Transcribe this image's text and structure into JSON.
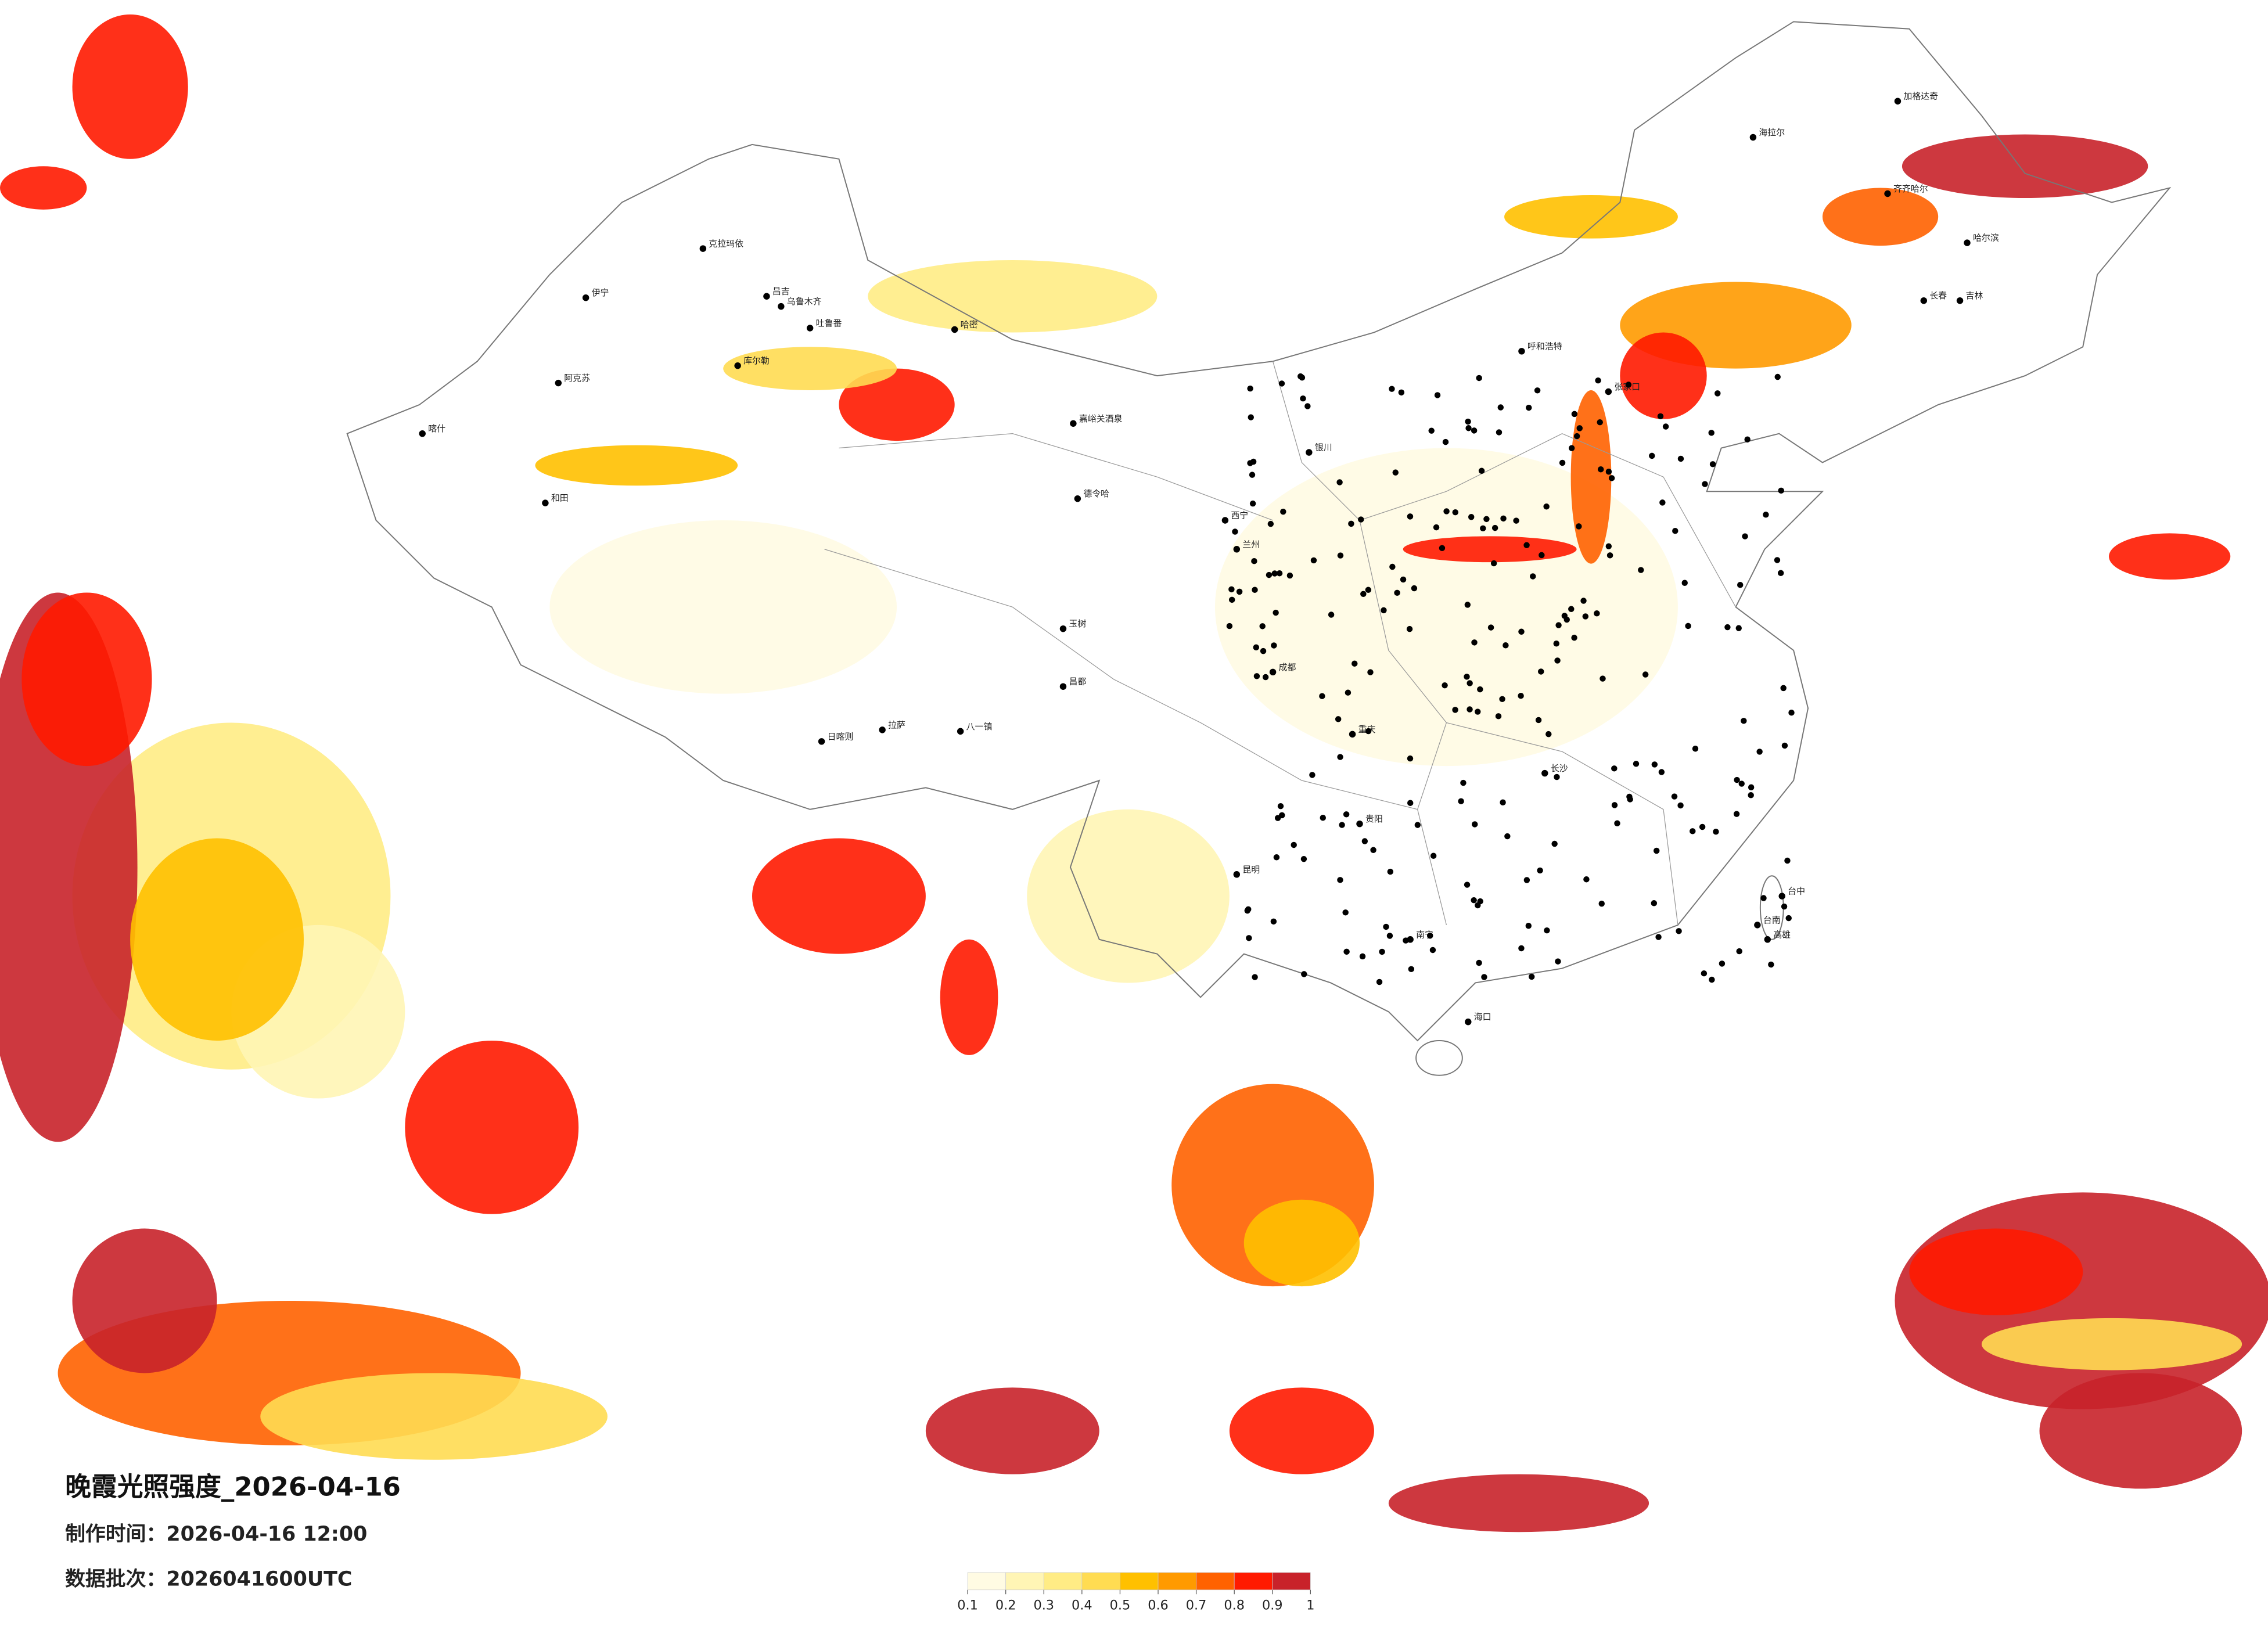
{
  "map": {
    "title": "晚霞光照强度_2026-04-16",
    "made_time": "制作时间：2026-04-16 12:00",
    "batch": "数据批次：2026041600UTC",
    "legend": {
      "ticks": [
        0.1,
        0.2,
        0.3,
        0.4,
        0.5,
        0.6,
        0.7,
        0.8,
        0.9,
        1
      ],
      "colors": [
        "#fffbe3",
        "#fff5b5",
        "#ffec85",
        "#ffdc52",
        "#ffc000",
        "#ff9a00",
        "#ff6200",
        "#ff1a00",
        "#c8222a"
      ]
    },
    "cities": [
      "克拉玛依",
      "伊宁",
      "昌吉",
      "乌鲁木齐",
      "吐鲁番",
      "哈密",
      "阿克苏",
      "库尔勒",
      "和田",
      "喀什",
      "嘉峪关酒泉",
      "德令哈",
      "拉萨",
      "日喀则",
      "八一镇",
      "昌都",
      "玉树",
      "西宁",
      "兰州",
      "银川",
      "呼和浩特",
      "张家口",
      "海拉尔",
      "加格达奇",
      "齐齐哈尔",
      "哈尔滨",
      "长春",
      "吉林",
      "长沙",
      "重庆",
      "成都",
      "昆明",
      "贵阳",
      "南宁",
      "海口",
      "台中",
      "台南",
      "高雄"
    ]
  }
}
